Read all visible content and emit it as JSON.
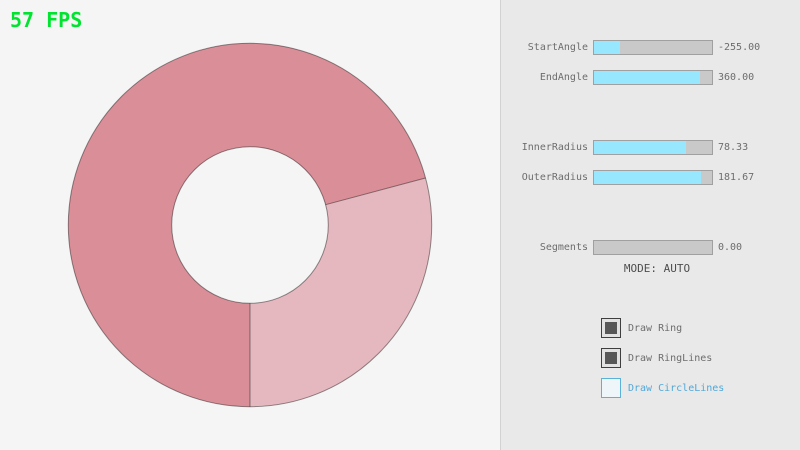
{
  "fps_label": "57 FPS",
  "colors": {
    "fps_green": "#00e430",
    "slider_fill": "#97e8ff",
    "ring_single_pass": "#e5b8bf",
    "ring_double_pass": "#d98e98",
    "panel_bg": "#e9e9e9",
    "canvas_bg": "#f5f5f5",
    "focused_blue": "#51a8d8"
  },
  "sliders": [
    {
      "label": "StartAngle",
      "value": "-255.00",
      "fill_pct": 22
    },
    {
      "label": "EndAngle",
      "value": "360.00",
      "fill_pct": 90
    },
    {
      "label": "InnerRadius",
      "value": "78.33",
      "fill_pct": 78
    },
    {
      "label": "OuterRadius",
      "value": "181.67",
      "fill_pct": 91
    },
    {
      "label": "Segments",
      "value": "0.00",
      "fill_pct": 0
    }
  ],
  "mode_label": "MODE: AUTO",
  "checkboxes": [
    {
      "label": "Draw Ring",
      "checked": true,
      "state": "normal"
    },
    {
      "label": "Draw RingLines",
      "checked": true,
      "state": "normal"
    },
    {
      "label": "Draw CircleLines",
      "checked": false,
      "state": "focused"
    }
  ],
  "ring": {
    "start_angle": -255,
    "end_angle": 360,
    "inner_radius": 78.33,
    "outer_radius": 181.67,
    "segments": 0,
    "mode": "AUTO"
  }
}
